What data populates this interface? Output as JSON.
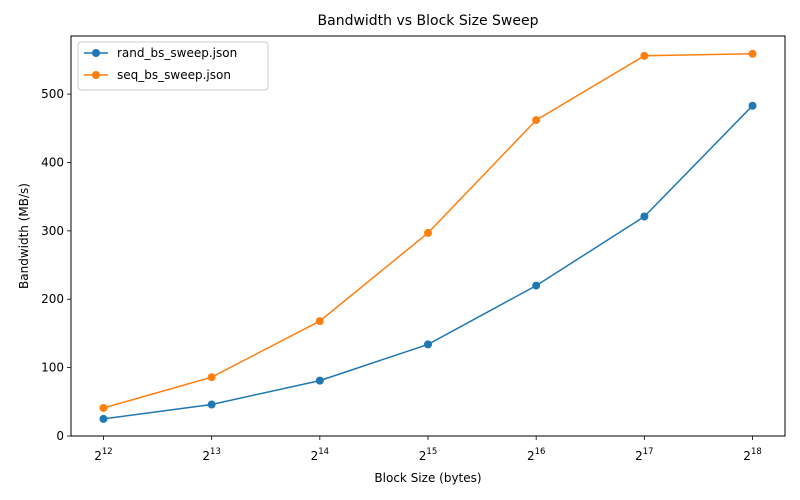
{
  "chart_data": {
    "type": "line",
    "title": "Bandwidth vs Block Size Sweep",
    "xlabel": "Block Size (bytes)",
    "ylabel": "Bandwidth (MB/s)",
    "x_scale": "log2",
    "x": [
      4096,
      8192,
      16384,
      32768,
      65536,
      131072,
      262144
    ],
    "x_tick_labels": [
      {
        "base": "2",
        "exp": "12"
      },
      {
        "base": "2",
        "exp": "13"
      },
      {
        "base": "2",
        "exp": "14"
      },
      {
        "base": "2",
        "exp": "15"
      },
      {
        "base": "2",
        "exp": "16"
      },
      {
        "base": "2",
        "exp": "17"
      },
      {
        "base": "2",
        "exp": "18"
      }
    ],
    "y_ticks": [
      "0",
      "100",
      "200",
      "300",
      "400",
      "500"
    ],
    "ylim": [
      0,
      585
    ],
    "grid": false,
    "legend_position": "top-left",
    "series": [
      {
        "name": "rand_bs_sweep.json",
        "color": "#1f77b4",
        "values": [
          25,
          46,
          81,
          134,
          220,
          321,
          483
        ]
      },
      {
        "name": "seq_bs_sweep.json",
        "color": "#ff7f0e",
        "values": [
          41,
          86,
          168,
          297,
          462,
          556,
          559
        ]
      }
    ]
  }
}
